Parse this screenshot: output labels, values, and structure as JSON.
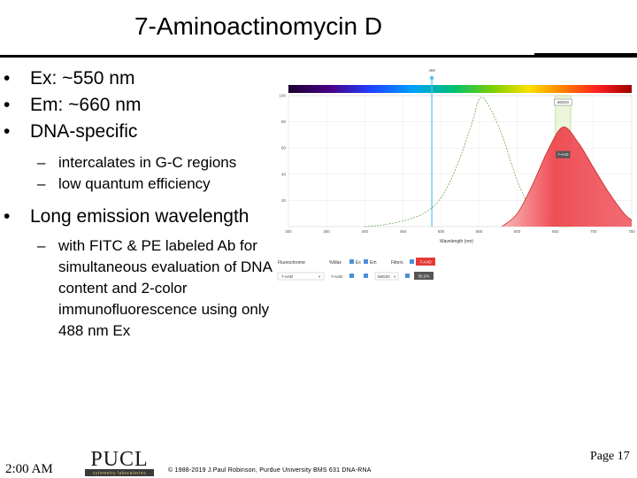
{
  "slide": {
    "title": "7-Aminoactinomycin D",
    "bullets": [
      {
        "text": "Ex: ~550 nm"
      },
      {
        "text": "Em: ~660 nm"
      },
      {
        "text": "DNA-specific",
        "sub": [
          "intercalates in G-C regions",
          "low quantum efficiency"
        ]
      },
      {
        "text": "Long emission wavelength",
        "sub": [
          "with FITC & PE labeled Ab for simultaneous evaluation of DNA content and 2-color immunofluorescence using only 488 nm Ex"
        ]
      }
    ]
  },
  "spectrum_viewer": {
    "laser_label": "488",
    "filter_label": "660/20",
    "emission_tag": "7-AAD",
    "legend": {
      "fluorochrome_label": "Fluorochrome",
      "hide_max_label": "%Max",
      "ex_label": "Ex",
      "em_label": "Em",
      "filters_label": "Filters",
      "fluor_name": "7-AAD",
      "fluor_value": "7-AAD",
      "filter_value": "660/20",
      "percent": "35.2%"
    }
  },
  "chart_data": {
    "type": "line",
    "xlabel": "Wavelength (nm)",
    "ylabel": "",
    "xlim": [
      300,
      750
    ],
    "ylim": [
      0,
      100
    ],
    "x_ticks": [
      300,
      350,
      400,
      450,
      500,
      550,
      600,
      650,
      700,
      750
    ],
    "y_ticks": [
      20,
      40,
      60,
      80,
      100
    ],
    "series": [
      {
        "name": "Ex",
        "style": "dashed",
        "color": "#6aa84f",
        "x": [
          400,
          420,
          440,
          460,
          480,
          500,
          520,
          540,
          550,
          560,
          580,
          600,
          620,
          640,
          660
        ],
        "y": [
          0,
          1,
          3,
          6,
          11,
          22,
          45,
          78,
          97,
          95,
          70,
          35,
          12,
          3,
          0
        ]
      },
      {
        "name": "Em",
        "style": "filled",
        "color": "#e8323c",
        "x": [
          580,
          600,
          620,
          640,
          660,
          680,
          700,
          720,
          740,
          750
        ],
        "y": [
          0,
          10,
          32,
          58,
          76,
          64,
          45,
          26,
          10,
          5
        ]
      }
    ],
    "laser_nm": 488,
    "filter_band": [
      650,
      670
    ],
    "grid": true
  },
  "footer": {
    "time": "2:00 AM",
    "page": "Page 17",
    "copyright": "© 1988-2019 J.Paul Robinson, Purdue University BMS 631 DNA-RNA",
    "logo_text": "PUCL",
    "logo_subtext": "cytometry laboratories"
  }
}
